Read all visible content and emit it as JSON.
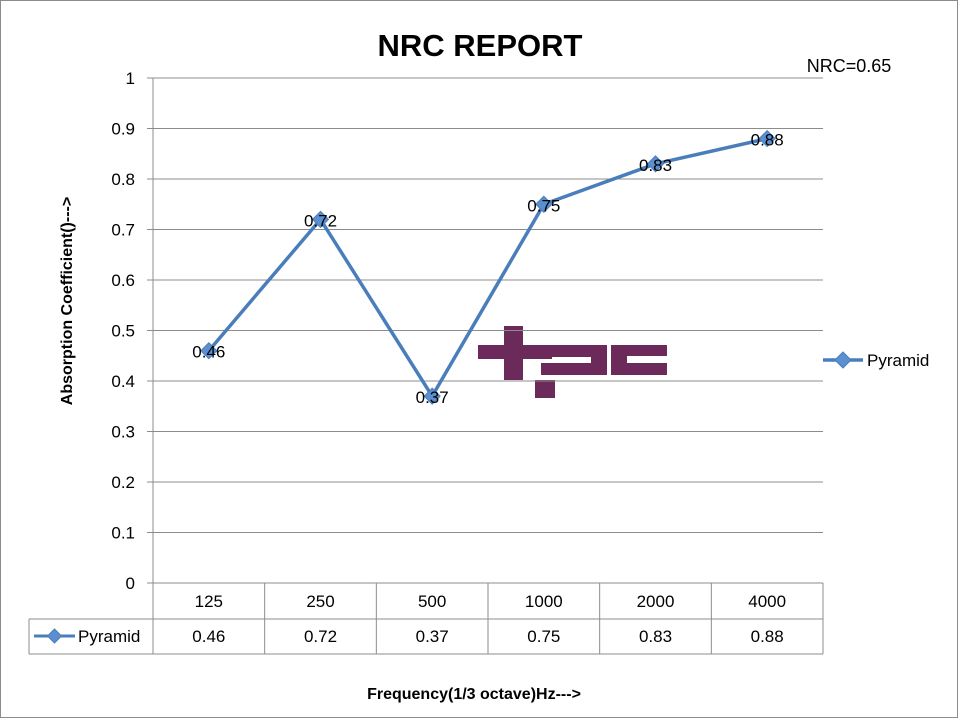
{
  "chart_data": {
    "type": "line",
    "title": "NRC REPORT",
    "annotation": "NRC=0.65",
    "xlabel": "Frequency(1/3 octave)Hz--->",
    "ylabel": "Absorption Coefficient()--->",
    "categories": [
      "125",
      "250",
      "500",
      "1000",
      "2000",
      "4000"
    ],
    "series": [
      {
        "name": "Pyramid",
        "values": [
          0.46,
          0.72,
          0.37,
          0.75,
          0.83,
          0.88
        ]
      }
    ],
    "data_labels": [
      "0.46",
      "0.72",
      "0.37",
      "0.75",
      "0.83",
      "0.88"
    ],
    "ylim": [
      0,
      1
    ],
    "yticks": [
      "0",
      "0.1",
      "0.2",
      "0.3",
      "0.4",
      "0.5",
      "0.6",
      "0.7",
      "0.8",
      "0.9",
      "1"
    ],
    "grid": true,
    "legend_position": "right",
    "data_table": true,
    "colors": {
      "series": "#4a7ebb",
      "series_fill": "#5b8fd0",
      "grid": "#8c8c8c",
      "logo": "#6b2a5a"
    }
  },
  "logo": {
    "text": "tpc"
  }
}
